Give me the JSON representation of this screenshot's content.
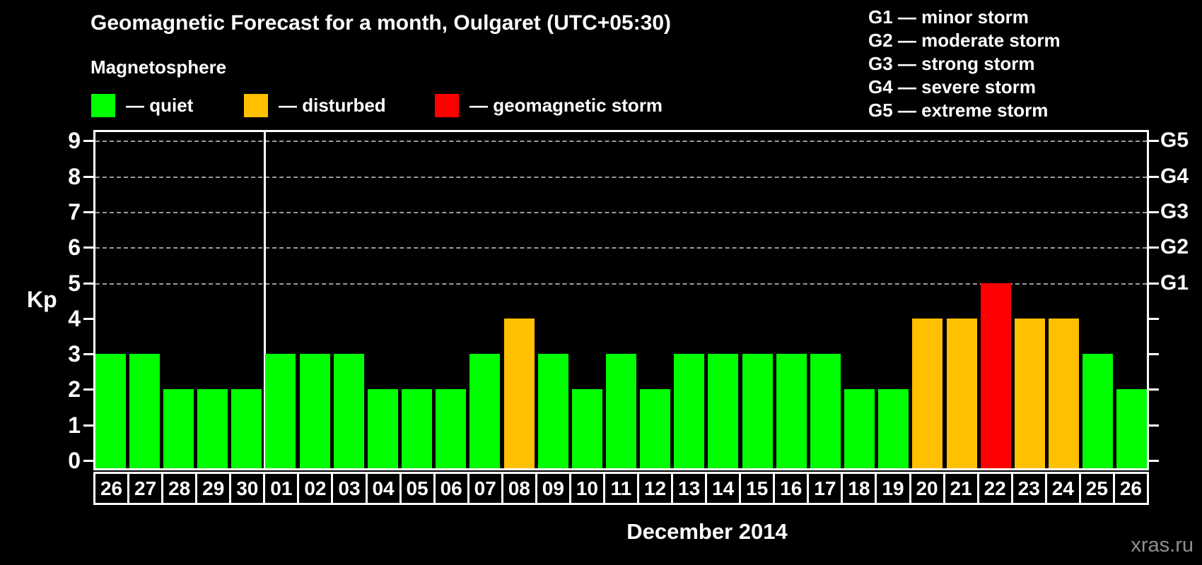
{
  "title": "Geomagnetic Forecast for a month, Oulgaret (UTC+05:30)",
  "subtitle": "Magnetosphere",
  "watermark": "xras.ru",
  "colors": {
    "background": "#000000",
    "quiet": "#00ff00",
    "disturbed": "#ffc000",
    "storm": "#ff0000",
    "axis": "#ffffff",
    "grid": "#9c9c9c",
    "watermark_gray": "#8f8f8f"
  },
  "legend": {
    "items": [
      {
        "status": "quiet",
        "label": "— quiet"
      },
      {
        "status": "disturbed",
        "label": "— disturbed"
      },
      {
        "status": "storm",
        "label": "— geomagnetic storm"
      }
    ]
  },
  "storm_scale": {
    "items": [
      {
        "label": "G1 — minor storm"
      },
      {
        "label": "G2 — moderate storm"
      },
      {
        "label": "G3 — strong storm"
      },
      {
        "label": "G4 — severe storm"
      },
      {
        "label": "G5 — extreme storm"
      }
    ]
  },
  "chart_data": {
    "type": "bar",
    "title": "Geomagnetic Forecast for a month, Oulgaret (UTC+05:30)",
    "xlabel": "December 2014",
    "ylabel": "Kp",
    "ylim": [
      0,
      9
    ],
    "yticks": [
      0,
      1,
      2,
      3,
      4,
      5,
      6,
      7,
      8,
      9
    ],
    "gridlines": [
      5,
      6,
      7,
      8,
      9
    ],
    "grid_style": "dashed horizontal lines at Kp 5-9 only",
    "legend_position": "top",
    "right_axis_labels": [
      {
        "text": "G1",
        "value": 5
      },
      {
        "text": "G2",
        "value": 6
      },
      {
        "text": "G3",
        "value": 7
      },
      {
        "text": "G4",
        "value": 8
      },
      {
        "text": "G5",
        "value": 9
      }
    ],
    "month_divider_before_index": 5,
    "bars": [
      {
        "day": "26",
        "kp": 3,
        "status": "quiet"
      },
      {
        "day": "27",
        "kp": 3,
        "status": "quiet"
      },
      {
        "day": "28",
        "kp": 2,
        "status": "quiet"
      },
      {
        "day": "29",
        "kp": 2,
        "status": "quiet"
      },
      {
        "day": "30",
        "kp": 2,
        "status": "quiet"
      },
      {
        "day": "01",
        "kp": 3,
        "status": "quiet"
      },
      {
        "day": "02",
        "kp": 3,
        "status": "quiet"
      },
      {
        "day": "03",
        "kp": 3,
        "status": "quiet"
      },
      {
        "day": "04",
        "kp": 2,
        "status": "quiet"
      },
      {
        "day": "05",
        "kp": 2,
        "status": "quiet"
      },
      {
        "day": "06",
        "kp": 2,
        "status": "quiet"
      },
      {
        "day": "07",
        "kp": 3,
        "status": "quiet"
      },
      {
        "day": "08",
        "kp": 4,
        "status": "disturbed"
      },
      {
        "day": "09",
        "kp": 3,
        "status": "quiet"
      },
      {
        "day": "10",
        "kp": 2,
        "status": "quiet"
      },
      {
        "day": "11",
        "kp": 3,
        "status": "quiet"
      },
      {
        "day": "12",
        "kp": 2,
        "status": "quiet"
      },
      {
        "day": "13",
        "kp": 3,
        "status": "quiet"
      },
      {
        "day": "14",
        "kp": 3,
        "status": "quiet"
      },
      {
        "day": "15",
        "kp": 3,
        "status": "quiet"
      },
      {
        "day": "16",
        "kp": 3,
        "status": "quiet"
      },
      {
        "day": "17",
        "kp": 3,
        "status": "quiet"
      },
      {
        "day": "18",
        "kp": 2,
        "status": "quiet"
      },
      {
        "day": "19",
        "kp": 2,
        "status": "quiet"
      },
      {
        "day": "20",
        "kp": 4,
        "status": "disturbed"
      },
      {
        "day": "21",
        "kp": 4,
        "status": "disturbed"
      },
      {
        "day": "22",
        "kp": 5,
        "status": "storm"
      },
      {
        "day": "23",
        "kp": 4,
        "status": "disturbed"
      },
      {
        "day": "24",
        "kp": 4,
        "status": "disturbed"
      },
      {
        "day": "25",
        "kp": 3,
        "status": "quiet"
      },
      {
        "day": "26",
        "kp": 2,
        "status": "quiet"
      }
    ]
  }
}
